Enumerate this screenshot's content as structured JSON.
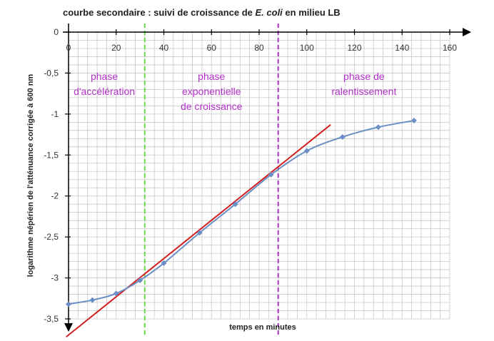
{
  "chart_data": {
    "type": "line",
    "title": {
      "prefix": "courbe secondaire : suivi de croissance de ",
      "italic": "E. coli",
      "suffix": " en milieu LB"
    },
    "xlabel": "temps en minutes",
    "ylabel": "logarithme népérien de l'atténuance corrigée à 600 nm",
    "xlim": [
      0,
      160
    ],
    "ylim": [
      -3.5,
      0
    ],
    "x_ticks": [
      {
        "value": 0,
        "label": "0"
      },
      {
        "value": 20,
        "label": "20"
      },
      {
        "value": 40,
        "label": "40"
      },
      {
        "value": 60,
        "label": "60"
      },
      {
        "value": 80,
        "label": "80"
      },
      {
        "value": 100,
        "label": "100"
      },
      {
        "value": 120,
        "label": "120"
      },
      {
        "value": 140,
        "label": "140"
      },
      {
        "value": 160,
        "label": "160"
      }
    ],
    "y_ticks": [
      {
        "value": 0,
        "label": "0"
      },
      {
        "value": -0.5,
        "label": "-0,5"
      },
      {
        "value": -1,
        "label": "-1"
      },
      {
        "value": -1.5,
        "label": "-1,5"
      },
      {
        "value": -2,
        "label": "-2"
      },
      {
        "value": -2.5,
        "label": "-2,5"
      },
      {
        "value": -3,
        "label": "-3"
      },
      {
        "value": -3.5,
        "label": "-3,5"
      }
    ],
    "grid": true,
    "series": [
      {
        "color": "#6a8fc5",
        "x": [
          0,
          10,
          20,
          30,
          40,
          55,
          70,
          85,
          100,
          115,
          130,
          145
        ],
        "y": [
          -3.32,
          -3.27,
          -3.19,
          -3.03,
          -2.82,
          -2.45,
          -2.1,
          -1.74,
          -1.45,
          -1.28,
          -1.16,
          -1.08
        ]
      }
    ],
    "fit_line": {
      "color": "#d42020",
      "x": [
        -1,
        110
      ],
      "y": [
        -3.72,
        -1.13
      ]
    },
    "phase_lines": [
      {
        "x": 32,
        "color": "#66dd44"
      },
      {
        "x": 88,
        "color": "#b030c8"
      }
    ],
    "annotations": [
      {
        "lines": [
          "phase",
          "d'accélération"
        ],
        "x": 15,
        "y": -0.55
      },
      {
        "lines": [
          "phase",
          "exponentielle",
          "de croissance"
        ],
        "x": 60,
        "y": -0.55
      },
      {
        "lines": [
          "phase de",
          "ralentissement"
        ],
        "x": 124,
        "y": -0.55
      }
    ],
    "colors": {
      "grid": "#c8c8c8",
      "axis": "#000000",
      "phase_text": "#b12fc8"
    }
  }
}
